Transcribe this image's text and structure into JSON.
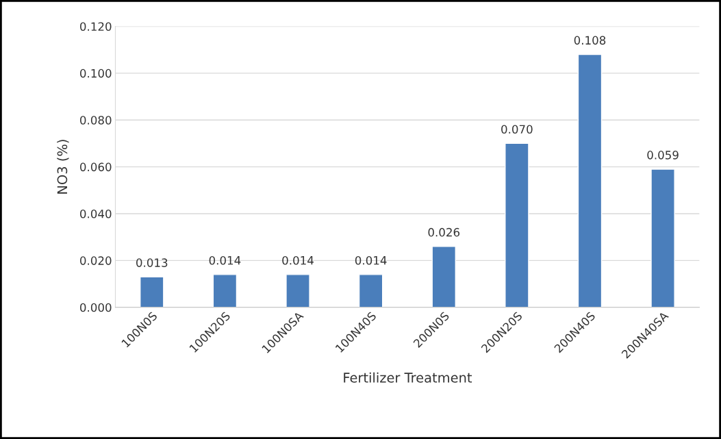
{
  "chart_data": {
    "type": "bar",
    "xlabel": "Fertilizer Treatment",
    "ylabel": "NO3 (%)",
    "categories": [
      "100N0S",
      "100N20S",
      "100N0SA",
      "100N40S",
      "200N0S",
      "200N20S",
      "200N40S",
      "200N40SA"
    ],
    "values": [
      0.013,
      0.014,
      0.014,
      0.014,
      0.026,
      0.07,
      0.108,
      0.059
    ],
    "value_labels": [
      "0.013",
      "0.014",
      "0.014",
      "0.014",
      "0.026",
      "0.070",
      "0.108",
      "0.059"
    ],
    "color": "#4a7ebb",
    "ylim": [
      0,
      0.12
    ],
    "yticks": [
      {
        "value": 0,
        "label": "0.000"
      },
      {
        "value": 0.02,
        "label": "0.020"
      },
      {
        "value": 0.04,
        "label": "0.040"
      },
      {
        "value": 0.06,
        "label": "0.060"
      },
      {
        "value": 0.08,
        "label": "0.080"
      },
      {
        "value": 0.1,
        "label": "0.100"
      },
      {
        "value": 0.12,
        "label": "0.120"
      }
    ],
    "grid": "y",
    "legend": false
  }
}
